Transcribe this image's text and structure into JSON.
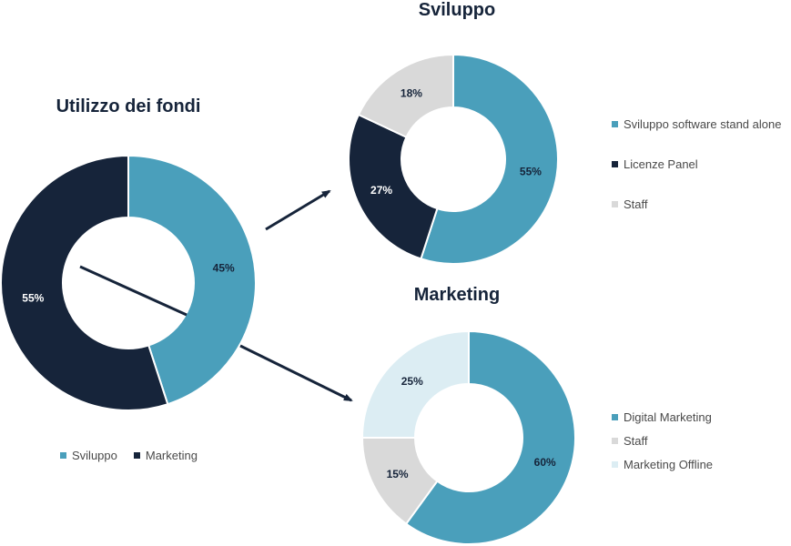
{
  "chart_data": [
    {
      "type": "pie",
      "title": "Utilizzo dei fondi",
      "categories": [
        "Sviluppo",
        "Marketing"
      ],
      "values": [
        45,
        55
      ],
      "labels": [
        "45%",
        "55%"
      ],
      "colors": [
        "#4a9fbb",
        "#16243a"
      ],
      "label_colors": [
        "#16243a",
        "#ffffff"
      ],
      "legend_position": "bottom"
    },
    {
      "type": "pie",
      "title": "Sviluppo",
      "categories": [
        "Sviluppo software stand alone",
        "Licenze Panel",
        "Staff"
      ],
      "values": [
        55,
        27,
        18
      ],
      "labels": [
        "55%",
        "27%",
        "18%"
      ],
      "colors": [
        "#4a9fbb",
        "#16243a",
        "#d9d9d9"
      ],
      "label_colors": [
        "#16243a",
        "#ffffff",
        "#16243a"
      ],
      "legend_position": "right"
    },
    {
      "type": "pie",
      "title": "Marketing",
      "categories": [
        "Digital Marketing",
        "Staff",
        "Marketing Offline"
      ],
      "values": [
        60,
        15,
        25
      ],
      "labels": [
        "60%",
        "15%",
        "25%"
      ],
      "colors": [
        "#4a9fbb",
        "#d9d9d9",
        "#dcedf3"
      ],
      "label_colors": [
        "#16243a",
        "#16243a",
        "#16243a"
      ],
      "legend_position": "right"
    }
  ]
}
